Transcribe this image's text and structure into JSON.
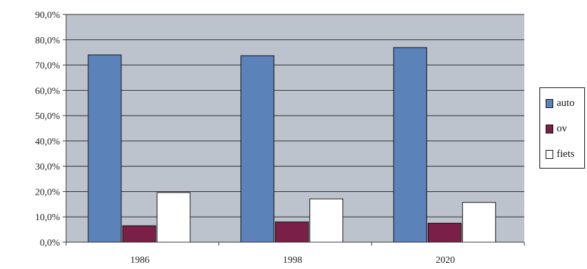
{
  "chart_data": {
    "type": "bar",
    "title": "",
    "xlabel": "",
    "ylabel": "",
    "categories": [
      "1986",
      "1998",
      "2020"
    ],
    "series": [
      {
        "name": "auto",
        "values": [
          74.0,
          73.7,
          76.9
        ],
        "color": "#5b82b9"
      },
      {
        "name": "ov",
        "values": [
          6.5,
          8.0,
          7.5
        ],
        "color": "#7a1f45"
      },
      {
        "name": "fiets",
        "values": [
          19.6,
          17.1,
          15.7
        ],
        "color": "#ffffff"
      }
    ],
    "ylim": [
      0,
      90
    ],
    "yticks": [
      0,
      10,
      20,
      30,
      40,
      50,
      60,
      70,
      80,
      90
    ],
    "ytick_labels": [
      "0,0%",
      "10,0%",
      "20,0%",
      "30,0%",
      "40,0%",
      "50,0%",
      "60,0%",
      "70,0%",
      "80,0%",
      "90,0%"
    ],
    "grid": true,
    "plot_background": "#bcc3cc",
    "legend_position": "right"
  }
}
